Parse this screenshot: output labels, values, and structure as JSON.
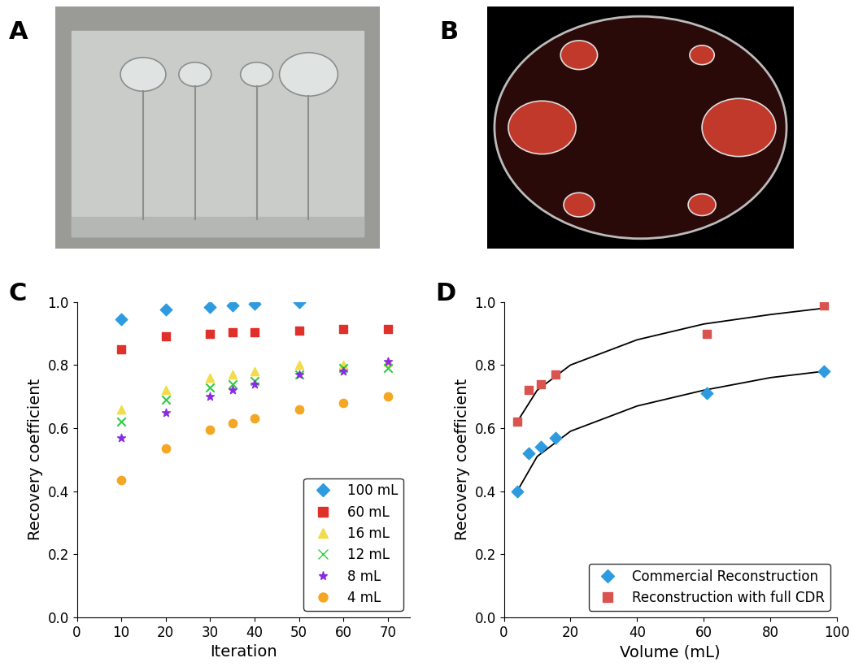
{
  "chart_data": [
    {
      "type": "image",
      "title": "A"
    },
    {
      "type": "image",
      "title": "B"
    },
    {
      "type": "scatter",
      "title": "C",
      "x_label": "Iteration",
      "y_label": "Recovery coefficient",
      "x": [
        10,
        20,
        30,
        35,
        40,
        50,
        60,
        70
      ],
      "series": [
        {
          "name": "100 mL",
          "color": "#2e9be0",
          "marker": "diamond",
          "values": [
            0.945,
            0.975,
            0.985,
            0.99,
            0.995,
            1.0,
            null,
            null
          ]
        },
        {
          "name": "60 mL",
          "color": "#e0302c",
          "marker": "square",
          "values": [
            0.85,
            0.89,
            0.9,
            0.905,
            0.905,
            0.91,
            0.915,
            0.915
          ]
        },
        {
          "name": "16 mL",
          "color": "#f2dc4a",
          "marker": "triangle",
          "values": [
            0.66,
            0.72,
            0.76,
            0.77,
            0.78,
            0.8,
            0.8,
            0.81
          ]
        },
        {
          "name": "12 mL",
          "color": "#2ecc40",
          "marker": "x",
          "values": [
            0.62,
            0.69,
            0.73,
            0.74,
            0.75,
            0.77,
            0.79,
            0.79
          ]
        },
        {
          "name": "8 mL",
          "color": "#8a2be2",
          "marker": "star",
          "values": [
            0.57,
            0.65,
            0.7,
            0.72,
            0.74,
            0.77,
            0.78,
            0.81
          ]
        },
        {
          "name": "4 mL",
          "color": "#f5a623",
          "marker": "circle",
          "values": [
            0.435,
            0.535,
            0.595,
            0.615,
            0.63,
            0.66,
            0.68,
            0.7
          ]
        }
      ],
      "xlim": [
        0,
        75
      ],
      "xticks": [
        0,
        10,
        20,
        30,
        40,
        50,
        60,
        70
      ],
      "ylim": [
        0,
        1.0
      ],
      "yticks": [
        {
          "value": 0,
          "label": "0.0"
        },
        0.2,
        0.4,
        0.6,
        0.8,
        {
          "value": 1.0,
          "label": "1.0"
        }
      ],
      "legend": "lower right"
    },
    {
      "type": "scatter",
      "title": "D",
      "x_label": "Volume (mL)",
      "y_label": "Recovery coefficient",
      "series": [
        {
          "name": "Commercial Reconstruction",
          "color": "#2e9be0",
          "marker": "diamond",
          "x": [
            4,
            7.5,
            11,
            15.5,
            61,
            96
          ],
          "values": [
            0.4,
            0.52,
            0.54,
            0.57,
            0.71,
            0.78
          ],
          "fit_x": [
            4,
            10,
            20,
            40,
            60,
            80,
            96
          ],
          "fit_values": [
            0.4,
            0.51,
            0.59,
            0.67,
            0.72,
            0.76,
            0.78
          ]
        },
        {
          "name": "Reconstruction with full CDR",
          "color": "#d9534f",
          "marker": "square",
          "x": [
            4,
            7.5,
            11,
            15.5,
            61,
            96
          ],
          "values": [
            0.62,
            0.72,
            0.74,
            0.77,
            0.9,
            0.99
          ],
          "fit_x": [
            4,
            10,
            20,
            40,
            60,
            80,
            96
          ],
          "fit_values": [
            0.62,
            0.72,
            0.8,
            0.88,
            0.93,
            0.96,
            0.98
          ]
        }
      ],
      "xlim": [
        0,
        100
      ],
      "xticks": [
        0,
        20,
        40,
        60,
        80,
        100
      ],
      "ylim": [
        0,
        1.0
      ],
      "yticks": [
        {
          "value": 0,
          "label": "0.0"
        },
        0.2,
        0.4,
        0.6,
        0.8,
        {
          "value": 1.0,
          "label": "1.0"
        }
      ],
      "legend": "lower right"
    }
  ]
}
